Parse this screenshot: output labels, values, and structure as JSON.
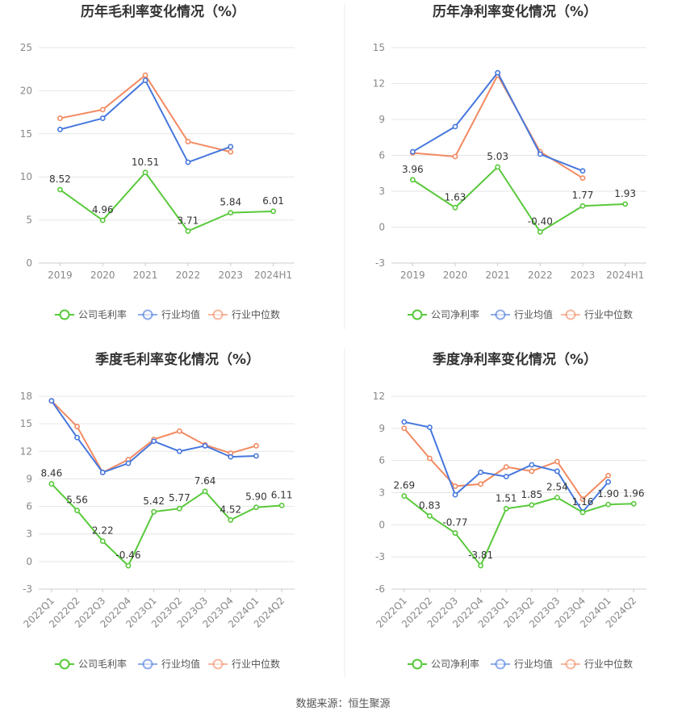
{
  "source": "数据来源：恒生聚源",
  "chart_data": [
    {
      "type": "line",
      "title": "历年毛利率变化情况（%）",
      "categories": [
        "2019",
        "2020",
        "2021",
        "2022",
        "2023",
        "2024H1"
      ],
      "y_ticks": [
        0,
        5,
        10,
        15,
        20,
        25
      ],
      "ylim": [
        0,
        25
      ],
      "x_label_rotate": false,
      "legend_position": "bottom",
      "grid": true,
      "series": [
        {
          "name": "公司毛利率",
          "color": "#58c93a",
          "values": [
            8.52,
            4.96,
            10.51,
            3.71,
            5.84,
            6.01
          ],
          "labels": [
            "8.52",
            "4.96",
            "10.51",
            "3.71",
            "5.84",
            "6.01"
          ]
        },
        {
          "name": "行业均值",
          "color": "#4677dd",
          "values": [
            15.5,
            16.8,
            21.2,
            11.7,
            13.5,
            null
          ]
        },
        {
          "name": "行业中位数",
          "color": "#f28a62",
          "values": [
            16.8,
            17.8,
            21.8,
            14.1,
            12.9,
            null
          ]
        }
      ]
    },
    {
      "type": "line",
      "title": "历年净利率变化情况（%）",
      "categories": [
        "2019",
        "2020",
        "2021",
        "2022",
        "2023",
        "2024H1"
      ],
      "y_ticks": [
        -3,
        0,
        3,
        6,
        9,
        12,
        15
      ],
      "ylim": [
        -3,
        15
      ],
      "x_label_rotate": false,
      "legend_position": "bottom",
      "grid": true,
      "series": [
        {
          "name": "公司净利率",
          "color": "#58c93a",
          "values": [
            3.96,
            1.63,
            5.03,
            -0.4,
            1.77,
            1.93
          ],
          "labels": [
            "3.96",
            "1.63",
            "5.03",
            "-0.40",
            "1.77",
            "1.93"
          ]
        },
        {
          "name": "行业均值",
          "color": "#4677dd",
          "values": [
            6.3,
            8.4,
            12.9,
            6.1,
            4.7,
            null
          ]
        },
        {
          "name": "行业中位数",
          "color": "#f28a62",
          "values": [
            6.2,
            5.9,
            12.7,
            6.3,
            4.1,
            null
          ]
        }
      ]
    },
    {
      "type": "line",
      "title": "季度毛利率变化情况（%）",
      "categories": [
        "2022Q1",
        "2022Q2",
        "2022Q3",
        "2022Q4",
        "2023Q1",
        "2023Q2",
        "2023Q3",
        "2023Q4",
        "2024Q1",
        "2024Q2"
      ],
      "y_ticks": [
        -3,
        0,
        3,
        6,
        9,
        12,
        15,
        18
      ],
      "ylim": [
        -3,
        18
      ],
      "x_label_rotate": true,
      "legend_position": "bottom",
      "grid": true,
      "series": [
        {
          "name": "公司毛利率",
          "color": "#58c93a",
          "values": [
            8.46,
            5.56,
            2.22,
            -0.46,
            5.42,
            5.77,
            7.64,
            4.52,
            5.9,
            6.11
          ],
          "labels": [
            "8.46",
            "5.56",
            "2.22",
            "-0.46",
            "5.42",
            "5.77",
            "7.64",
            "4.52",
            "5.90",
            "6.11"
          ]
        },
        {
          "name": "行业均值",
          "color": "#4677dd",
          "values": [
            17.5,
            13.5,
            9.7,
            10.7,
            13.1,
            12.0,
            12.6,
            11.4,
            11.5,
            null
          ]
        },
        {
          "name": "行业中位数",
          "color": "#f28a62",
          "values": [
            17.5,
            14.7,
            9.7,
            11.1,
            13.3,
            14.2,
            12.7,
            11.8,
            12.6,
            null
          ]
        }
      ]
    },
    {
      "type": "line",
      "title": "季度净利率变化情况（%）",
      "categories": [
        "2022Q1",
        "2022Q2",
        "2022Q3",
        "2022Q4",
        "2023Q1",
        "2023Q2",
        "2023Q3",
        "2023Q4",
        "2024Q1",
        "2024Q2"
      ],
      "y_ticks": [
        -6,
        -3,
        0,
        3,
        6,
        9,
        12
      ],
      "ylim": [
        -6,
        12
      ],
      "x_label_rotate": true,
      "legend_position": "bottom",
      "grid": true,
      "series": [
        {
          "name": "公司净利率",
          "color": "#58c93a",
          "values": [
            2.69,
            0.83,
            -0.77,
            -3.81,
            1.51,
            1.85,
            2.54,
            1.16,
            1.9,
            1.96
          ],
          "labels": [
            "2.69",
            "0.83",
            "-0.77",
            "-3.81",
            "1.51",
            "1.85",
            "2.54",
            "1.16",
            "1.90",
            "1.96"
          ]
        },
        {
          "name": "行业均值",
          "color": "#4677dd",
          "values": [
            9.6,
            9.1,
            2.8,
            4.9,
            4.5,
            5.6,
            5.0,
            1.2,
            4.0,
            null
          ]
        },
        {
          "name": "行业中位数",
          "color": "#f28a62",
          "values": [
            9.0,
            6.2,
            3.6,
            3.8,
            5.4,
            5.0,
            5.9,
            2.4,
            4.6,
            null
          ]
        }
      ]
    }
  ]
}
